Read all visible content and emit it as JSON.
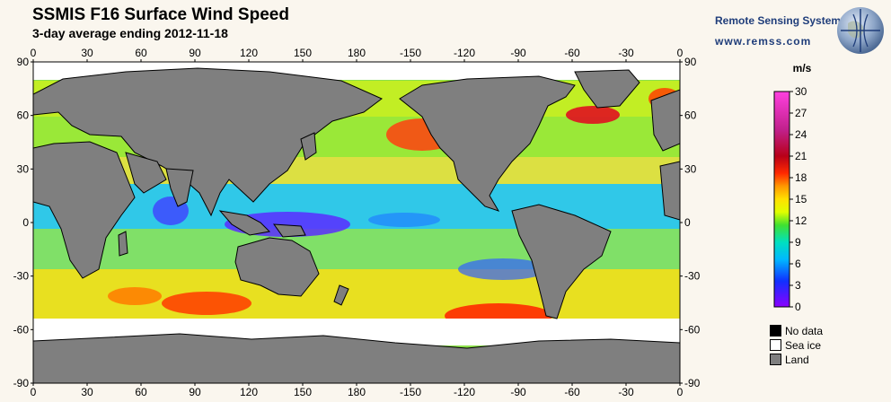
{
  "title": "SSMIS F16 Surface Wind Speed",
  "subtitle": "3-day average ending 2012-11-18",
  "brand": {
    "name": "Remote Sensing Systems",
    "url": "www.remss.com"
  },
  "map": {
    "lon_labels": [
      "0",
      "30",
      "60",
      "90",
      "120",
      "150",
      "180",
      "-150",
      "-120",
      "-90",
      "-60",
      "-30",
      "0"
    ],
    "lat_labels": [
      "90",
      "60",
      "30",
      "0",
      "-30",
      "-60",
      "-90"
    ]
  },
  "colorbar": {
    "unit": "m/s",
    "ticks": [
      "30",
      "27",
      "24",
      "21",
      "18",
      "15",
      "12",
      "9",
      "6",
      "3",
      "0"
    ],
    "colors": [
      "#7a00ff",
      "#2040ff",
      "#00b0ff",
      "#00e8c8",
      "#30e040",
      "#d8ff00",
      "#ffe000",
      "#ff9800",
      "#ff3000",
      "#c00020",
      "#ff30c0"
    ]
  },
  "legend": [
    {
      "label": "No data",
      "color": "#000000"
    },
    {
      "label": "Sea ice",
      "color": "#ffffff"
    },
    {
      "label": "Land",
      "color": "#7f7f7f"
    }
  ],
  "colors": {
    "land": "#7f7f7f",
    "ice": "#ffffff",
    "background": "#faf6ee"
  }
}
